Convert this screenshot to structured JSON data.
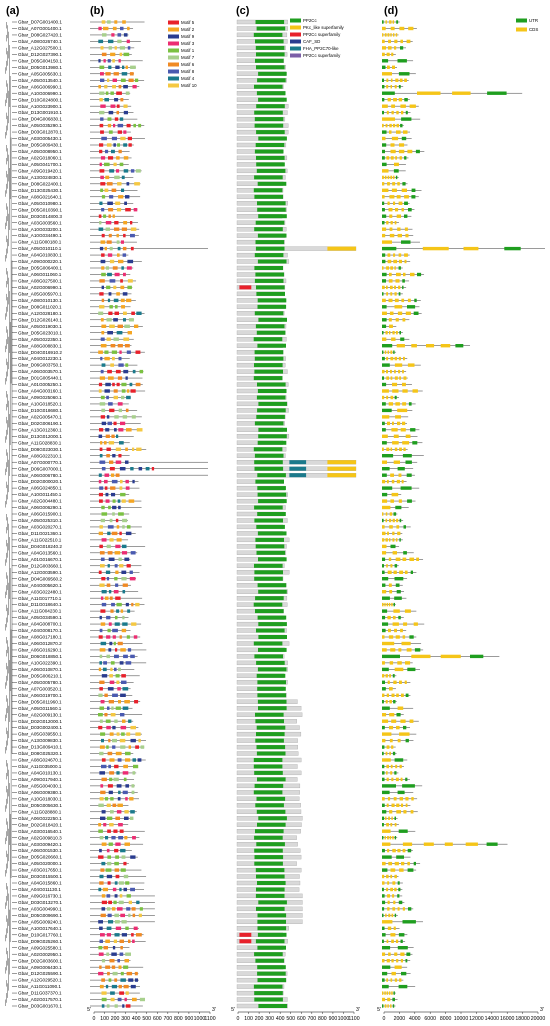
{
  "panels": {
    "a": "(a)",
    "b": "(b)",
    "c": "(c)",
    "d": "(d)"
  },
  "genes": [
    "Gbar_D07G001400.1",
    "Gbar_A07G001400.1",
    "Gbar_D08G027420.1",
    "Gbar_A08G026740.1",
    "Gbar_A12G027500.1",
    "Gbar_D12G027390.1",
    "Gbar_D05G004150.1",
    "Gbar_D05G013980.1",
    "Gbar_A05G005630.1",
    "Gbar_A05G013540.1",
    "Gbar_A06G006990.1",
    "Gbar_A10G006990.1",
    "Gbar_D10G024800.1",
    "Gbar_A10G023900.1",
    "Gbar_D13G001910.1",
    "Gbar_D04G006830.1",
    "Gbar_A05G035290.1",
    "Gbar_D03G012870.1",
    "Gbar_A03G005430.1",
    "Gbar_D05G009430.1",
    "Gbar_A05G008950.1",
    "Gbar_A02G018060.1",
    "Gbar_A05G041700.1",
    "Gbar_A09G019420.1",
    "Gbar_A13G024830.1",
    "Gbar_D08G022400.1",
    "Gbar_D13G025430.1",
    "Gbar_A08G021640.1",
    "Gbar_A05G010980.1",
    "Gbar_D05G010390.1",
    "Gbar_D03G014800.3",
    "Gbar_A03G003560.1",
    "Gbar_A10G033200.1",
    "Gbar_A10G034490.1",
    "Gbar_A11G000180.1",
    "Gbar_A05G010110.1",
    "Gbar_A04G010830.1",
    "Gbar_A09G000220.1",
    "Gbar_D05G006400.1",
    "Gbar_A06G011060.1",
    "Gbar_A08G027500.1",
    "Gbar_A02G006990.1",
    "Gbar_A05G005970.1",
    "Gbar_A08G010130.1",
    "Gbar_D08G011020.1",
    "Gbar_A12G028180.1",
    "Gbar_D12G026140.1",
    "Gbar_A05G019030.1",
    "Gbar_D05G023010.1",
    "Gbar_A05G022350.1",
    "Gbar_A08G008830.1",
    "Gbar_D04G016910.2",
    "Gbar_A04G012230.1",
    "Gbar_D06G003750.1",
    "Gbar_A06G003570.1",
    "Gbar_D01G005440.1",
    "Gbar_A01G005250.1",
    "Gbar_A04G003160.1",
    "Gbar_A09G025060.1",
    "Gbar_A10G018520.1",
    "Gbar_D10G018680.1",
    "Gbar_A02G005470.1",
    "Gbar_D02G006190.1",
    "Gbar_A13G012360.1",
    "Gbar_D13G012000.1",
    "Gbar_A11G028830.1",
    "Gbar_D08G023030.1",
    "Gbar_A08G022310.1",
    "Gbar_A07G000770.1",
    "Gbar_D06G007000.1",
    "Gbar_A06G006780.1",
    "Gbar_D02G000020.1",
    "Gbar_A06G024850.1",
    "Gbar_A10G011450.1",
    "Gbar_A02G004480.1",
    "Gbar_A06G006290.1",
    "Gbar_A06G015900.1",
    "Gbar_A05G025310.1",
    "Gbar_A03G020270.1",
    "Gbar_D11G021360.1",
    "Gbar_A11G022510.1",
    "Gbar_D04G018240.2",
    "Gbar_A04G013560.1",
    "Gbar_A01G016670.1",
    "Gbar_D12G003660.1",
    "Gbar_A12G003590.1",
    "Gbar_D04G009560.2",
    "Gbar_A04G005620.1",
    "Gbar_A03G022480.1",
    "Gbar_A11G017710.1",
    "Gbar_D11G018640.1",
    "Gbar_A11G004230.1",
    "Gbar_A05G034590.1",
    "Gbar_A04G008700.1",
    "Gbar_A04G008170.1",
    "Gbar_A08G017180.1",
    "Gbar_A06G012870.2",
    "Gbar_A06G016290.1",
    "Gbar_D06G018850.1",
    "Gbar_A10G022390.1",
    "Gbar_A06G010870.1",
    "Gbar_D05G006210.1",
    "Gbar_A05G005780.1",
    "Gbar_A07G003520.1",
    "Gbar_A06G019700.1",
    "Gbar_D05G011960.1",
    "Gbar_A05G011560.1",
    "Gbar_A02G009130.1",
    "Gbar_D02G012000.1",
    "Gbar_D03G002400.1",
    "Gbar_A05G039550.1",
    "Gbar_A13G009830.1",
    "Gbar_D13G009410.1",
    "Gbar_D08G025320.1",
    "Gbar_A08G024670.1",
    "Gbar_A11G035000.1",
    "Gbar_A04G010130.1",
    "Gbar_A09G017940.1",
    "Gbar_A05G004030.1",
    "Gbar_A06G009380.1",
    "Gbar_A10G018030.1",
    "Gbar_D05G005630.1",
    "Gbar_A11G028880.1",
    "Gbar_A06G022250.1",
    "Gbar_D02G018420.1",
    "Gbar_A03G016540.1",
    "Gbar_A02G009810.3",
    "Gbar_A03G009420.1",
    "Gbar_A06G001530.1",
    "Gbar_D05G020660.1",
    "Gbar_A05G020000.1",
    "Gbar_A03G017650.1",
    "Gbar_D03G015500.1",
    "Gbar_A04G015860.1",
    "Gbar_A04G011130.1",
    "Gbar_A09G016730.1",
    "Gbar_D03G013270.1",
    "Gbar_A03G004990.1",
    "Gbar_D05G009690.1",
    "Gbar_A05G009240.1",
    "Gbar_A10G017640.1",
    "Gbar_D10G017760.1",
    "Gbar_D09G025260.1",
    "Gbar_A09G025580.1",
    "Gbar_A02G002950.1",
    "Gbar_D02G003600.1",
    "Gbar_A09G006430.1",
    "Gbar_D12G025590.1",
    "Gbar_A12G029520.1",
    "Gbar_A11G011090.1",
    "Gbar_D11G037370.1",
    "Gbar_A02G017570.1",
    "Gbar_D03G001670.1"
  ],
  "legend_b": [
    {
      "label": "Motif 5",
      "color": "#e8212b"
    },
    {
      "label": "Motif 2",
      "color": "#f5a623"
    },
    {
      "label": "Motif 9",
      "color": "#2a3c8f"
    },
    {
      "label": "Motif 3",
      "color": "#ec2d72"
    },
    {
      "label": "Motif 1",
      "color": "#7bc142"
    },
    {
      "label": "Motif 7",
      "color": "#a8d08d"
    },
    {
      "label": "Motif 6",
      "color": "#f08a24"
    },
    {
      "label": "Motif 8",
      "color": "#4a5ab0"
    },
    {
      "label": "Motif 4",
      "color": "#1b7a8c"
    },
    {
      "label": "Motif 10",
      "color": "#f5c842"
    }
  ],
  "legend_c": [
    {
      "label": "PP2Cc",
      "color": "#1f9e1f"
    },
    {
      "label": "PKc_like superfamily",
      "color": "#f5c518"
    },
    {
      "label": "PP2Cc superfamily",
      "color": "#e8212b"
    },
    {
      "label": "CAF_SD",
      "color": "#2a3c8f"
    },
    {
      "label": "FHA_PP2C70-like",
      "color": "#1b7a8c"
    },
    {
      "label": "PP2Cc superfamily",
      "color": "#7b5ea7"
    }
  ],
  "legend_d": [
    {
      "label": "UTR",
      "color": "#1f9e1f"
    },
    {
      "label": "CDS",
      "color": "#f5c518"
    }
  ],
  "axis_b": {
    "ticks": [
      "0",
      "100",
      "200",
      "300",
      "400",
      "500",
      "600",
      "700",
      "800",
      "900",
      "1000",
      "1100"
    ],
    "start_label": "5'",
    "end_label": "3'"
  },
  "axis_c": {
    "ticks": [
      "0",
      "100",
      "200",
      "300",
      "400",
      "500",
      "600",
      "700",
      "800",
      "900",
      "1000",
      "1100"
    ],
    "start_label": "5'",
    "end_label": "3'"
  },
  "axis_d": {
    "ticks": [
      "0",
      "2000",
      "4000",
      "6000",
      "8000",
      "10000",
      "12000",
      "14000",
      "16000",
      "18000",
      "20000"
    ],
    "start_label": "5'",
    "end_label": "3'"
  }
}
